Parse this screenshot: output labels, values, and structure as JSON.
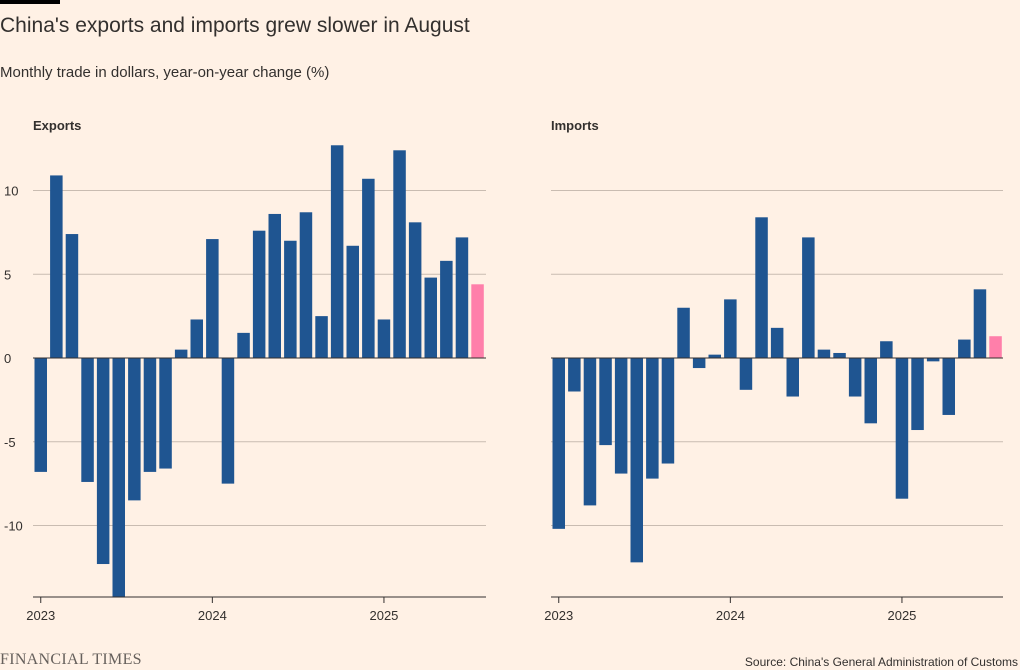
{
  "header": {
    "title": "China's exports and imports grew slower in August",
    "subtitle": "Monthly trade in dollars, year-on-year change (%)"
  },
  "footer": {
    "logo": "FINANCIAL TIMES",
    "source": "Source: China's General Administration of Customs"
  },
  "colors": {
    "bar": "#1f5591",
    "highlight": "#ff7faa",
    "grid": "#c9bcb1",
    "axis": "#33302e"
  },
  "chart_data": [
    {
      "type": "bar",
      "title": "Exports",
      "ylim": [
        -14,
        13
      ],
      "yticks": [
        10,
        5,
        0,
        -5,
        -10
      ],
      "xtick_labels": [
        {
          "label": "2023",
          "index": 0
        },
        {
          "label": "2024",
          "index": 11
        },
        {
          "label": "2025",
          "index": 22
        }
      ],
      "highlight_last": true,
      "values": [
        -6.8,
        10.9,
        7.4,
        -7.4,
        -12.3,
        -14.3,
        -8.5,
        -6.8,
        -6.6,
        0.5,
        2.3,
        7.1,
        -7.5,
        1.5,
        7.6,
        8.6,
        7.0,
        8.7,
        2.5,
        12.7,
        6.7,
        10.7,
        2.3,
        12.4,
        8.1,
        4.8,
        5.8,
        7.2,
        4.4
      ]
    },
    {
      "type": "bar",
      "title": "Imports",
      "ylim": [
        -14,
        13
      ],
      "yticks": [
        10,
        5,
        0,
        -5,
        -10
      ],
      "xtick_labels": [
        {
          "label": "2023",
          "index": 0
        },
        {
          "label": "2024",
          "index": 11
        },
        {
          "label": "2025",
          "index": 22
        }
      ],
      "highlight_last": true,
      "values": [
        -10.2,
        -2.0,
        -8.8,
        -5.2,
        -6.9,
        -12.2,
        -7.2,
        -6.3,
        3.0,
        -0.6,
        0.2,
        3.5,
        -1.9,
        8.4,
        1.8,
        -2.3,
        7.2,
        0.5,
        0.3,
        -2.3,
        -3.9,
        1.0,
        -8.4,
        -4.3,
        -0.2,
        -3.4,
        1.1,
        4.1,
        1.3
      ]
    }
  ]
}
